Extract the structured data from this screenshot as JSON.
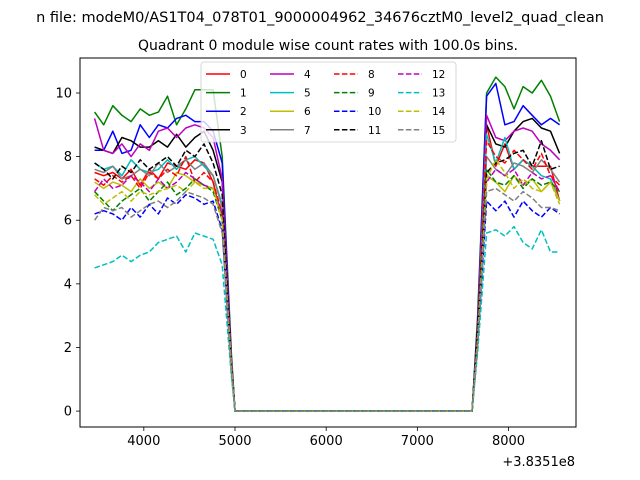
{
  "chart_data": {
    "type": "line",
    "suptitle": "n file: modeM0/AS1T04_078T01_9000004962_34676cztM0_level2_quad_clean",
    "title": "Quadrant 0 module wise count rates with 100.0s bins.",
    "xlabel": "",
    "ylabel": "",
    "x_offset_label": "+3.8351e8",
    "xlim": [
      3300,
      8740
    ],
    "ylim": [
      -0.5,
      11.1
    ],
    "xticks": [
      4000,
      5000,
      6000,
      7000,
      8000
    ],
    "yticks": [
      0,
      2,
      4,
      6,
      8,
      10
    ],
    "grid": false,
    "legend_position": "top-center",
    "legend_columns": 4,
    "x": [
      3460,
      3560,
      3660,
      3760,
      3860,
      3960,
      4060,
      4160,
      4260,
      4360,
      4460,
      4560,
      4660,
      4760,
      4860,
      4960,
      5000,
      5200,
      5400,
      5600,
      5800,
      6000,
      6200,
      6400,
      6600,
      6800,
      7000,
      7200,
      7400,
      7600,
      7660,
      7760,
      7860,
      7960,
      8060,
      8160,
      8260,
      8360,
      8460,
      8560
    ],
    "series": [
      {
        "name": "0",
        "color": "#ff0000",
        "dash": "solid",
        "values": [
          7.5,
          7.4,
          7.5,
          7.3,
          7.6,
          7.1,
          7.6,
          7.3,
          7.8,
          7.7,
          7.6,
          7.9,
          7.8,
          7.2,
          6.0,
          1.5,
          0,
          0,
          0,
          0,
          0,
          0,
          0,
          0,
          0,
          0,
          0,
          0,
          0,
          0,
          2.5,
          9.0,
          7.7,
          8.4,
          7.6,
          7.9,
          7.7,
          7.7,
          7.7,
          6.6
        ]
      },
      {
        "name": "1",
        "color": "#008000",
        "dash": "solid",
        "values": [
          9.4,
          9.0,
          9.6,
          9.3,
          9.1,
          9.5,
          9.3,
          9.4,
          9.9,
          9.0,
          9.5,
          10.1,
          10.1,
          10.1,
          8.0,
          1.8,
          0,
          0,
          0,
          0,
          0,
          0,
          0,
          0,
          0,
          0,
          0,
          0,
          0,
          0,
          2.9,
          10.0,
          10.5,
          10.2,
          9.5,
          10.2,
          10.0,
          10.4,
          9.9,
          9.1
        ]
      },
      {
        "name": "2",
        "color": "#0000ff",
        "dash": "solid",
        "values": [
          8.2,
          8.2,
          8.8,
          8.1,
          8.2,
          9.0,
          8.6,
          9.0,
          8.9,
          9.2,
          9.3,
          9.1,
          9.1,
          8.8,
          7.8,
          1.6,
          0,
          0,
          0,
          0,
          0,
          0,
          0,
          0,
          0,
          0,
          0,
          0,
          0,
          0,
          2.7,
          9.9,
          10.3,
          9.0,
          9.1,
          9.6,
          9.3,
          9.0,
          9.2,
          9.0
        ]
      },
      {
        "name": "3",
        "color": "#000000",
        "dash": "solid",
        "values": [
          8.3,
          8.2,
          8.1,
          8.6,
          8.5,
          8.3,
          8.3,
          8.5,
          8.3,
          8.7,
          8.3,
          8.6,
          8.8,
          8.2,
          7.2,
          1.6,
          0,
          0,
          0,
          0,
          0,
          0,
          0,
          0,
          0,
          0,
          0,
          0,
          0,
          0,
          2.6,
          9.0,
          8.4,
          8.3,
          8.8,
          9.1,
          9.2,
          8.9,
          8.8,
          8.1
        ]
      },
      {
        "name": "4",
        "color": "#bf00bf",
        "dash": "solid",
        "values": [
          9.2,
          8.2,
          8.1,
          8.4,
          8.0,
          8.4,
          8.2,
          8.8,
          8.9,
          8.6,
          8.9,
          9.0,
          8.9,
          8.6,
          7.3,
          1.6,
          0,
          0,
          0,
          0,
          0,
          0,
          0,
          0,
          0,
          0,
          0,
          0,
          0,
          0,
          2.6,
          9.3,
          8.6,
          8.5,
          8.8,
          8.9,
          8.8,
          8.4,
          8.2,
          7.9
        ]
      },
      {
        "name": "5",
        "color": "#00bfbf",
        "dash": "solid",
        "values": [
          7.8,
          7.6,
          7.7,
          7.4,
          7.9,
          7.6,
          7.5,
          7.6,
          7.9,
          7.6,
          7.9,
          8.0,
          7.7,
          7.4,
          6.5,
          1.4,
          0,
          0,
          0,
          0,
          0,
          0,
          0,
          0,
          0,
          0,
          0,
          0,
          0,
          0,
          2.3,
          8.7,
          7.8,
          8.6,
          7.6,
          7.9,
          7.7,
          7.4,
          7.3,
          6.6
        ]
      },
      {
        "name": "6",
        "color": "#bfbf00",
        "dash": "solid",
        "values": [
          7.2,
          7.0,
          7.2,
          7.1,
          6.9,
          7.3,
          7.0,
          7.2,
          7.0,
          7.5,
          7.4,
          7.2,
          7.1,
          7.0,
          6.2,
          1.4,
          0,
          0,
          0,
          0,
          0,
          0,
          0,
          0,
          0,
          0,
          0,
          0,
          0,
          0,
          2.2,
          7.4,
          7.2,
          6.9,
          7.4,
          7.1,
          7.3,
          6.9,
          7.2,
          6.6
        ]
      },
      {
        "name": "7",
        "color": "#808080",
        "dash": "solid",
        "values": [
          7.6,
          7.5,
          7.7,
          7.3,
          7.4,
          7.6,
          7.4,
          7.8,
          7.5,
          7.7,
          7.9,
          7.6,
          7.8,
          7.4,
          6.4,
          1.4,
          0,
          0,
          0,
          0,
          0,
          0,
          0,
          0,
          0,
          0,
          0,
          0,
          0,
          0,
          2.3,
          8.0,
          7.6,
          7.4,
          7.8,
          7.7,
          7.5,
          7.9,
          7.6,
          7.2
        ]
      },
      {
        "name": "8",
        "color": "#ff0000",
        "dash": "dashed",
        "values": [
          7.3,
          7.1,
          7.4,
          7.2,
          7.4,
          7.0,
          7.5,
          7.3,
          7.6,
          7.4,
          8.0,
          7.2,
          7.5,
          7.2,
          6.2,
          1.4,
          0,
          0,
          0,
          0,
          0,
          0,
          0,
          0,
          0,
          0,
          0,
          0,
          0,
          0,
          2.3,
          8.5,
          8.0,
          7.8,
          8.2,
          7.9,
          7.6,
          8.1,
          7.4,
          7.1
        ]
      },
      {
        "name": "9",
        "color": "#008000",
        "dash": "dashed",
        "values": [
          6.9,
          6.6,
          6.3,
          6.6,
          6.8,
          7.0,
          6.6,
          6.9,
          7.2,
          6.8,
          7.0,
          7.3,
          7.1,
          6.9,
          6.0,
          1.3,
          0,
          0,
          0,
          0,
          0,
          0,
          0,
          0,
          0,
          0,
          0,
          0,
          0,
          0,
          2.2,
          7.6,
          7.2,
          7.1,
          7.4,
          7.0,
          7.3,
          7.1,
          7.2,
          6.9
        ]
      },
      {
        "name": "10",
        "color": "#0000ff",
        "dash": "dashed",
        "values": [
          6.2,
          6.3,
          6.2,
          6.0,
          6.4,
          6.1,
          6.5,
          6.2,
          6.7,
          6.5,
          6.8,
          6.7,
          6.5,
          6.6,
          5.7,
          1.3,
          0,
          0,
          0,
          0,
          0,
          0,
          0,
          0,
          0,
          0,
          0,
          0,
          0,
          0,
          2.0,
          6.6,
          6.3,
          6.6,
          6.1,
          6.6,
          6.3,
          6.1,
          6.4,
          6.2
        ]
      },
      {
        "name": "11",
        "color": "#000000",
        "dash": "dashed",
        "values": [
          7.8,
          7.6,
          7.3,
          7.7,
          7.5,
          7.9,
          7.6,
          7.8,
          8.0,
          7.7,
          8.2,
          8.0,
          8.4,
          7.8,
          6.8,
          1.5,
          0,
          0,
          0,
          0,
          0,
          0,
          0,
          0,
          0,
          0,
          0,
          0,
          0,
          0,
          2.5,
          7.5,
          7.8,
          7.9,
          8.1,
          8.2,
          7.7,
          8.5,
          7.6,
          7.7
        ]
      },
      {
        "name": "12",
        "color": "#bf00bf",
        "dash": "dashed",
        "values": [
          6.9,
          7.3,
          7.0,
          7.1,
          7.4,
          7.2,
          6.9,
          7.3,
          7.0,
          7.2,
          7.5,
          7.3,
          7.1,
          7.0,
          6.2,
          1.4,
          0,
          0,
          0,
          0,
          0,
          0,
          0,
          0,
          0,
          0,
          0,
          0,
          0,
          0,
          2.2,
          7.2,
          7.6,
          7.4,
          7.6,
          7.1,
          7.5,
          7.3,
          7.4,
          6.9
        ]
      },
      {
        "name": "13",
        "color": "#00bfbf",
        "dash": "dashed",
        "values": [
          4.5,
          4.6,
          4.7,
          4.9,
          4.7,
          4.9,
          5.0,
          5.3,
          5.4,
          5.5,
          5.0,
          5.6,
          5.5,
          5.4,
          4.6,
          1.1,
          0,
          0,
          0,
          0,
          0,
          0,
          0,
          0,
          0,
          0,
          0,
          0,
          0,
          0,
          1.8,
          5.6,
          5.7,
          5.5,
          5.8,
          5.3,
          5.1,
          5.7,
          5.0,
          5.0
        ]
      },
      {
        "name": "14",
        "color": "#bfbf00",
        "dash": "dashed",
        "values": [
          6.8,
          6.5,
          6.7,
          6.9,
          6.6,
          6.9,
          6.8,
          6.9,
          7.0,
          7.1,
          6.9,
          7.2,
          7.0,
          7.0,
          6.0,
          1.4,
          0,
          0,
          0,
          0,
          0,
          0,
          0,
          0,
          0,
          0,
          0,
          0,
          0,
          0,
          2.2,
          7.3,
          7.9,
          7.5,
          7.0,
          7.3,
          7.0,
          6.9,
          7.2,
          6.5
        ]
      },
      {
        "name": "15",
        "color": "#808080",
        "dash": "dashed",
        "values": [
          6.0,
          6.4,
          6.3,
          6.4,
          6.1,
          6.3,
          6.5,
          6.6,
          6.4,
          6.6,
          6.9,
          6.8,
          6.7,
          6.5,
          5.6,
          1.2,
          0,
          0,
          0,
          0,
          0,
          0,
          0,
          0,
          0,
          0,
          0,
          0,
          0,
          0,
          2.0,
          6.9,
          7.0,
          6.8,
          6.6,
          6.9,
          6.7,
          6.4,
          6.4,
          6.3
        ]
      }
    ]
  }
}
